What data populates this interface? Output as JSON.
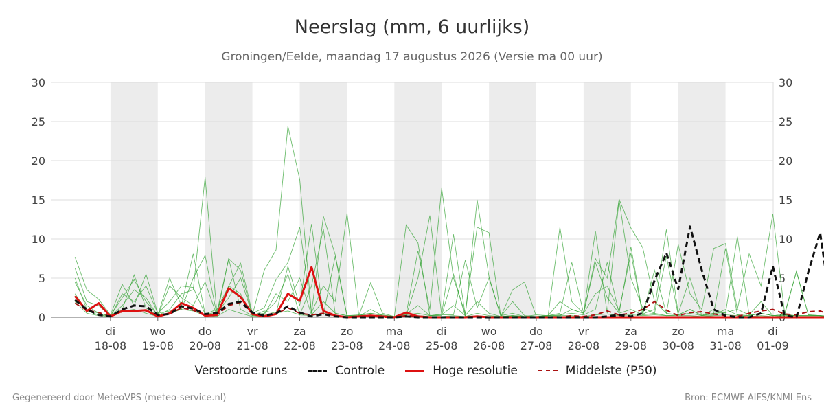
{
  "title": "Neerslag (mm, 6 uurlijks)",
  "subtitle": "Groningen/Eelde, maandag 17 augustus 2026 (Versie ma 00 uur)",
  "footer": {
    "left": "Gegenereerd door MeteoVPS (meteo-service.nl)",
    "right": "Bron: ECMWF AIFS/KNMI Ens"
  },
  "legend": [
    {
      "label": "Verstoorde runs",
      "color": "#3aa63a",
      "style": "thin"
    },
    {
      "label": "Controle",
      "color": "#111111",
      "style": "dashed"
    },
    {
      "label": "Hoge resolutie",
      "color": "#dd1111",
      "style": "solid"
    },
    {
      "label": "Middelste (P50)",
      "color": "#aa1111",
      "style": "dashed"
    }
  ],
  "chart_data": {
    "type": "line",
    "x_start": "2026-08-17 06",
    "step_hours": 6,
    "ylim": [
      0,
      30
    ],
    "yticks": [
      0,
      5,
      10,
      15,
      20,
      25,
      30
    ],
    "grid": true,
    "x_ticks": [
      {
        "day": "di",
        "date": "18-08"
      },
      {
        "day": "wo",
        "date": "19-08"
      },
      {
        "day": "do",
        "date": "20-08"
      },
      {
        "day": "vr",
        "date": "21-08"
      },
      {
        "day": "za",
        "date": "22-08"
      },
      {
        "day": "zo",
        "date": "23-08"
      },
      {
        "day": "ma",
        "date": "24-08"
      },
      {
        "day": "di",
        "date": "25-08"
      },
      {
        "day": "wo",
        "date": "26-08"
      },
      {
        "day": "do",
        "date": "27-08"
      },
      {
        "day": "vr",
        "date": "28-08"
      },
      {
        "day": "za",
        "date": "29-08"
      },
      {
        "day": "zo",
        "date": "30-08"
      },
      {
        "day": "ma",
        "date": "31-08"
      },
      {
        "day": "di",
        "date": "01-09"
      }
    ],
    "shaded_days": [
      "18-08",
      "20-08",
      "22-08",
      "24-08",
      "26-08",
      "28-08",
      "30-08"
    ],
    "series": [
      {
        "name": "Hoge resolutie",
        "values": [
          2.7,
          0.8,
          1.8,
          0.1,
          0.8,
          0.8,
          0.9,
          0.1,
          0.5,
          1.8,
          1.2,
          0.2,
          0.3,
          3.7,
          2.6,
          0.4,
          0.1,
          0.4,
          3.0,
          2.1,
          6.4,
          0.8,
          0.2,
          0,
          0.1,
          0.2,
          0.1,
          0,
          0.6,
          0.1,
          0,
          0,
          0,
          0,
          0.1,
          0,
          0,
          0,
          0,
          0,
          0,
          0,
          0,
          0,
          0,
          0,
          0,
          0,
          0,
          0,
          0,
          0,
          0,
          0,
          0,
          0,
          0,
          0,
          0,
          0,
          0,
          0,
          0,
          0,
          0
        ]
      },
      {
        "name": "Controle",
        "values": [
          2.2,
          1.0,
          0.3,
          0.1,
          1.0,
          1.5,
          1.4,
          0.3,
          0.4,
          1.4,
          1.1,
          0.4,
          0.5,
          1.7,
          2.0,
          0.6,
          0.2,
          0.5,
          1.4,
          0.6,
          0.1,
          0.4,
          0.1,
          0,
          0,
          0,
          0,
          0,
          0.1,
          0,
          0,
          0,
          0,
          0,
          0,
          0,
          0,
          0,
          0,
          0,
          0,
          0,
          0,
          0,
          0,
          0.1,
          0.3,
          0.1,
          0.5,
          4.7,
          8.2,
          3.6,
          11.6,
          6.0,
          1.0,
          0.2,
          0,
          0,
          0.5,
          6.5,
          0.2,
          0,
          5.8,
          10.8,
          0.3
        ]
      },
      {
        "name": "Middelste (P50)",
        "values": [
          1.8,
          0.9,
          0.6,
          0.1,
          0.7,
          0.9,
          0.8,
          0.2,
          0.4,
          1.2,
          0.9,
          0.2,
          0.3,
          1.5,
          1.9,
          0.5,
          0.2,
          0.4,
          1.2,
          0.5,
          0.3,
          0.5,
          0.2,
          0,
          0.1,
          0.1,
          0,
          0,
          0.2,
          0.1,
          0,
          0,
          0,
          0,
          0.1,
          0,
          0,
          0,
          0,
          0,
          0,
          0,
          0.2,
          0.1,
          0.3,
          0.8,
          0.3,
          0.5,
          1.0,
          2.0,
          0.9,
          0.2,
          0.6,
          0.7,
          0.4,
          0.2,
          0.1,
          0.5,
          0.8,
          1.0,
          0.4,
          0.3,
          0.7,
          0.8,
          0.2
        ]
      }
    ],
    "ensemble": {
      "name": "Verstoorde runs",
      "values": [
        [
          7.7,
          3.5,
          2.3,
          0.3,
          4.2,
          1.5,
          5.5,
          0.5,
          2.0,
          4.0,
          3.8,
          0.4,
          0.6,
          7.5,
          6.0,
          0.3,
          6.0,
          8.6,
          24.4,
          17.6,
          0.5,
          12.9,
          8.0,
          0.2,
          0.3,
          0.5,
          0.2,
          0.1,
          0.4,
          8.5,
          1.0,
          16.5,
          5.0,
          0.5,
          11.5,
          10.8,
          0.1,
          0.2,
          0.1,
          0.1,
          0.2,
          11.5,
          2.0,
          0.5,
          7.5,
          5.0,
          15.1,
          11.4,
          8.9,
          2.0,
          0.5,
          9.3,
          3.0,
          1.0,
          8.8,
          9.4,
          1.0,
          8.1,
          4.0,
          13.2,
          0.5,
          5.8,
          0.3,
          0.2,
          0.1
        ],
        [
          5.0,
          1.0,
          0.5,
          0.2,
          2.5,
          4.8,
          2.0,
          0.3,
          5.0,
          1.5,
          8.1,
          0.4,
          1.0,
          4.0,
          6.9,
          0.5,
          1.2,
          4.8,
          7.0,
          11.5,
          0.6,
          4.0,
          2.0,
          13.3,
          0.2,
          4.4,
          0.5,
          0.1,
          11.8,
          9.5,
          0.2,
          0.4,
          10.6,
          0.2,
          15.0,
          5.2,
          0.1,
          3.5,
          4.5,
          0.1,
          0.2,
          2.0,
          1.0,
          0.5,
          7.0,
          2.5,
          0.5,
          9.0,
          0.4,
          1.0,
          11.2,
          0.5,
          5.0,
          0.2,
          1.0,
          0.5,
          10.3,
          0.3,
          2.0,
          0.2,
          0.3,
          5.9,
          0.3,
          0.2,
          0.1
        ],
        [
          6.3,
          2.0,
          1.5,
          0.1,
          1.0,
          5.4,
          1.2,
          0.2,
          1.0,
          3.0,
          3.5,
          17.9,
          0.5,
          2.5,
          5.0,
          0.3,
          0.5,
          2.0,
          5.5,
          0.3,
          4.0,
          11.3,
          0.5,
          0.2,
          0.2,
          0.3,
          0.1,
          0.1,
          0.2,
          5.0,
          13.0,
          0.3,
          0.3,
          7.3,
          1.2,
          5.0,
          0.2,
          0.5,
          0.1,
          0.3,
          0.2,
          0.2,
          1.0,
          0.5,
          11.0,
          0.5,
          15.0,
          5.0,
          1.2,
          0.5,
          7.8,
          0.3,
          1.0,
          0.2,
          0.5,
          0.6,
          1.0,
          0.3,
          0.5,
          0.2,
          0.3,
          0.2,
          0.2,
          0.2,
          0.1
        ],
        [
          4.5,
          1.5,
          0.5,
          0.1,
          3.0,
          2.0,
          4.0,
          0.5,
          0.8,
          1.0,
          5.0,
          7.9,
          0.3,
          4.0,
          3.0,
          0.2,
          0.8,
          0.5,
          6.5,
          1.5,
          11.9,
          0.3,
          7.8,
          0.1,
          0.2,
          0.5,
          0.3,
          0.1,
          0.4,
          1.5,
          0.2,
          0.3,
          1.5,
          0.2,
          2.0,
          0.5,
          0.1,
          0.2,
          0.1,
          0.1,
          0.2,
          0.5,
          7.0,
          0.5,
          3.0,
          4.0,
          0.8,
          8.2,
          0.3,
          6.0,
          0.5,
          0.3,
          1.0,
          0.2,
          0.5,
          8.8,
          0.3,
          0.2,
          0.5,
          0.2,
          0.3,
          0.2,
          0.2,
          0.2,
          0.1
        ],
        [
          3.0,
          0.8,
          0.3,
          0.1,
          1.5,
          3.5,
          2.5,
          0.2,
          4.0,
          2.5,
          1.5,
          4.5,
          0.2,
          7.5,
          1.0,
          0.2,
          0.3,
          3.0,
          2.0,
          5.0,
          0.3,
          2.0,
          0.5,
          0.2,
          0.1,
          1.0,
          0.2,
          0.1,
          0.3,
          0.5,
          0.2,
          0.2,
          5.5,
          0.1,
          0.5,
          0.2,
          0.1,
          2.0,
          0.2,
          0.1,
          0.2,
          0.3,
          0.5,
          0.3,
          1.0,
          7.0,
          0.5,
          1.0,
          0.3,
          0.5,
          0.2,
          0.3,
          0.5,
          0.2,
          0.3,
          1.0,
          0.3,
          0.2,
          0.5,
          0.2,
          0.3,
          0.2,
          0.2,
          0.2,
          0.1
        ],
        [
          2.0,
          0.5,
          0.2,
          0.1,
          0.8,
          1.0,
          0.5,
          0.1,
          0.5,
          1.0,
          0.8,
          0.2,
          0.1,
          1.0,
          0.5,
          0.1,
          0.2,
          0.5,
          0.8,
          0.3,
          0.2,
          0.5,
          0.2,
          0.1,
          0.1,
          0.2,
          0.1,
          0.1,
          0.1,
          0.2,
          0.1,
          0.1,
          0.2,
          0.1,
          0.2,
          0.1,
          0.1,
          0.2,
          0.1,
          0.1,
          0.1,
          0.2,
          0.2,
          0.1,
          0.3,
          0.4,
          0.2,
          0.3,
          0.2,
          0.3,
          0.2,
          0.2,
          0.2,
          0.1,
          0.2,
          0.3,
          0.2,
          0.1,
          0.2,
          0.1,
          0.2,
          0.1,
          0.1,
          0.1,
          0.1
        ]
      ]
    }
  }
}
